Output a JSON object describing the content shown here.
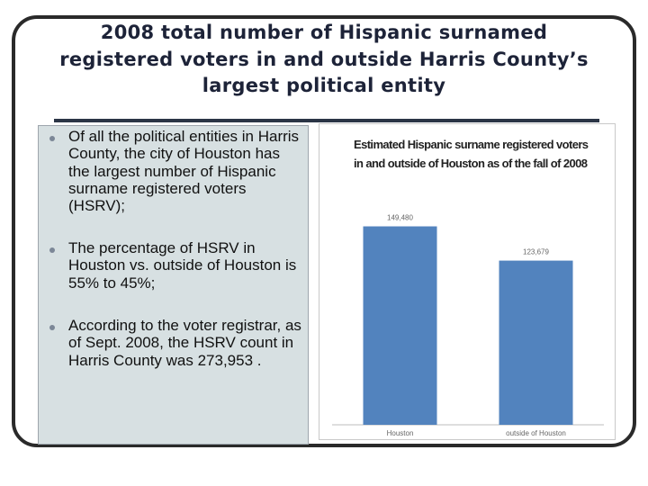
{
  "slide": {
    "title": "2008 total number of Hispanic surnamed registered voters in and outside Harris County’s largest political entity",
    "bullets": [
      "Of all the political entities in Harris County, the city of Houston has the largest number of Hispanic surname registered voters (HSRV);",
      "The percentage of HSRV in Houston vs. outside of Houston is 55% to 45%;",
      "According to the voter registrar, as of Sept. 2008, the HSRV count in Harris County was 273,953 ."
    ]
  },
  "chart_data": {
    "type": "bar",
    "title": "Estimated Hispanic surname registered voters in and outside of Houston as of the fall of 2008",
    "categories": [
      "Houston",
      "outside of Houston"
    ],
    "values": [
      149480,
      123679
    ],
    "data_labels": [
      "149,480",
      "123,679"
    ],
    "xlabel": "",
    "ylabel": "",
    "ylim": [
      0,
      160000
    ],
    "grid": false,
    "legend": "none",
    "bar_color": "#5283be"
  }
}
